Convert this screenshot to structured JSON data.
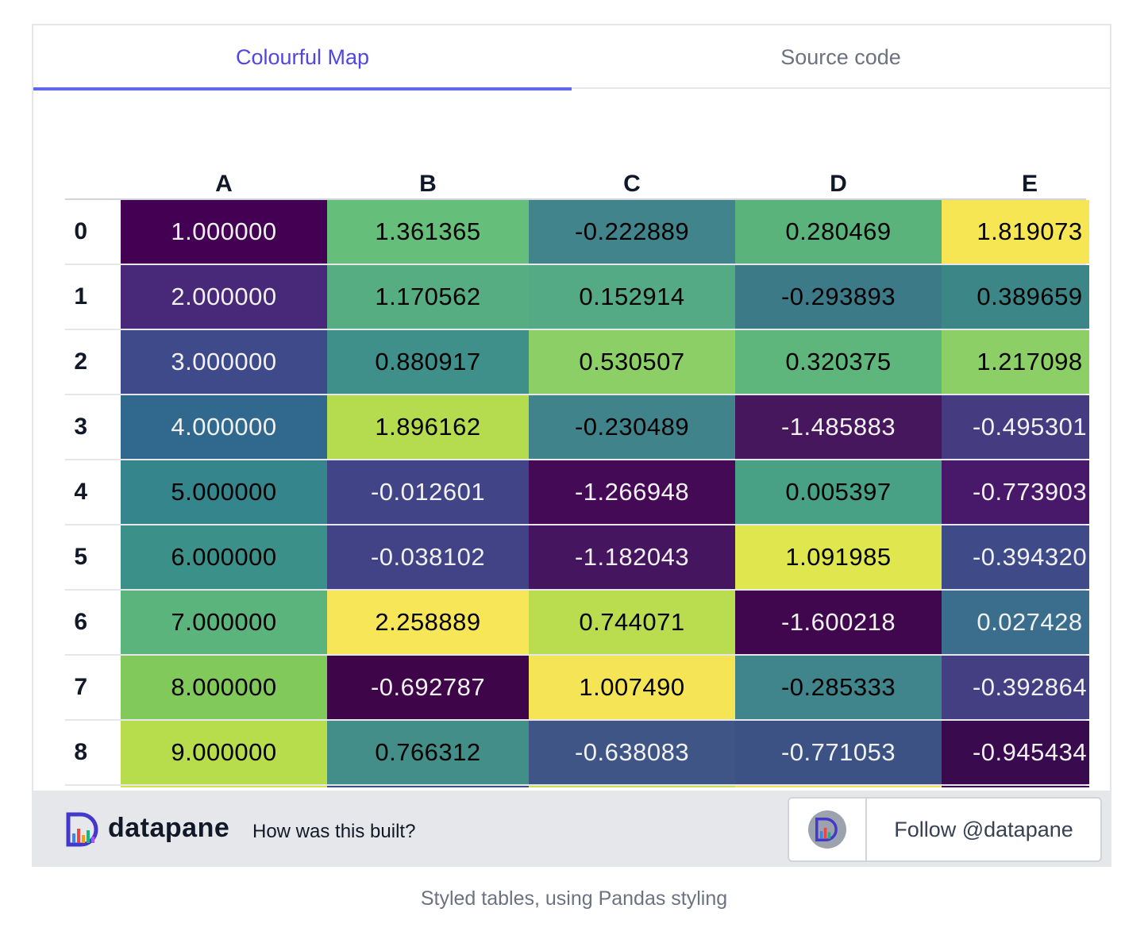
{
  "tabs": [
    {
      "label": "Colourful Map",
      "active": true
    },
    {
      "label": "Source code",
      "active": false
    }
  ],
  "table": {
    "columns": [
      "A",
      "B",
      "C",
      "D",
      "E"
    ],
    "rows": [
      {
        "index": "0",
        "cells": [
          {
            "value": "1.000000",
            "bg": "#440154",
            "fg": "#f1f1f1"
          },
          {
            "value": "1.361365",
            "bg": "#65be7a",
            "fg": "#000000"
          },
          {
            "value": "-0.222889",
            "bg": "#42848b",
            "fg": "#000000"
          },
          {
            "value": "0.280469",
            "bg": "#5bb37c",
            "fg": "#000000"
          },
          {
            "value": "1.819073",
            "bg": "#f7e654",
            "fg": "#000000"
          }
        ]
      },
      {
        "index": "1",
        "cells": [
          {
            "value": "2.000000",
            "bg": "#482878",
            "fg": "#f1f1f1"
          },
          {
            "value": "1.170562",
            "bg": "#56ad82",
            "fg": "#000000"
          },
          {
            "value": "0.152914",
            "bg": "#53aa84",
            "fg": "#000000"
          },
          {
            "value": "-0.293893",
            "bg": "#3d7a88",
            "fg": "#000000"
          },
          {
            "value": "0.389659",
            "bg": "#3d8687",
            "fg": "#000000"
          }
        ]
      },
      {
        "index": "2",
        "cells": [
          {
            "value": "3.000000",
            "bg": "#3e4a89",
            "fg": "#f1f1f1"
          },
          {
            "value": "0.880917",
            "bg": "#3f908b",
            "fg": "#000000"
          },
          {
            "value": "0.530507",
            "bg": "#8ccf66",
            "fg": "#000000"
          },
          {
            "value": "0.320375",
            "bg": "#5fb67c",
            "fg": "#000000"
          },
          {
            "value": "1.217098",
            "bg": "#8ccf66",
            "fg": "#000000"
          }
        ]
      },
      {
        "index": "3",
        "cells": [
          {
            "value": "4.000000",
            "bg": "#31688e",
            "fg": "#f1f1f1"
          },
          {
            "value": "1.896162",
            "bg": "#b5dc4e",
            "fg": "#000000"
          },
          {
            "value": "-0.230489",
            "bg": "#40838b",
            "fg": "#000000"
          },
          {
            "value": "-1.485883",
            "bg": "#46175c",
            "fg": "#f1f1f1"
          },
          {
            "value": "-0.495301",
            "bg": "#443b80",
            "fg": "#f1f1f1"
          }
        ]
      },
      {
        "index": "4",
        "cells": [
          {
            "value": "5.000000",
            "bg": "#35858d",
            "fg": "#000000"
          },
          {
            "value": "-0.012601",
            "bg": "#414487",
            "fg": "#f1f1f1"
          },
          {
            "value": "-1.266948",
            "bg": "#450a56",
            "fg": "#f1f1f1"
          },
          {
            "value": "0.005397",
            "bg": "#48a185",
            "fg": "#000000"
          },
          {
            "value": "-0.773903",
            "bg": "#48196a",
            "fg": "#f1f1f1"
          }
        ]
      },
      {
        "index": "5",
        "cells": [
          {
            "value": "6.000000",
            "bg": "#3b918a",
            "fg": "#000000"
          },
          {
            "value": "-0.038102",
            "bg": "#414386",
            "fg": "#f1f1f1"
          },
          {
            "value": "-1.182043",
            "bg": "#46155f",
            "fg": "#f1f1f1"
          },
          {
            "value": "1.091985",
            "bg": "#dfe64e",
            "fg": "#000000"
          },
          {
            "value": "-0.394320",
            "bg": "#3f4a88",
            "fg": "#f1f1f1"
          }
        ]
      },
      {
        "index": "6",
        "cells": [
          {
            "value": "7.000000",
            "bg": "#5bb47b",
            "fg": "#000000"
          },
          {
            "value": "2.258889",
            "bg": "#f7e658",
            "fg": "#000000"
          },
          {
            "value": "0.744071",
            "bg": "#b9dd4e",
            "fg": "#000000"
          },
          {
            "value": "-1.600218",
            "bg": "#40074f",
            "fg": "#f1f1f1"
          },
          {
            "value": "0.027428",
            "bg": "#3a6e8c",
            "fg": "#f1f1f1"
          }
        ]
      },
      {
        "index": "7",
        "cells": [
          {
            "value": "8.000000",
            "bg": "#82c95c",
            "fg": "#000000"
          },
          {
            "value": "-0.692787",
            "bg": "#3e0549",
            "fg": "#f1f1f1"
          },
          {
            "value": "1.007490",
            "bg": "#f5e556",
            "fg": "#000000"
          },
          {
            "value": "-0.285333",
            "bg": "#3f858b",
            "fg": "#000000"
          },
          {
            "value": "-0.392864",
            "bg": "#443e82",
            "fg": "#f1f1f1"
          }
        ]
      },
      {
        "index": "8",
        "cells": [
          {
            "value": "9.000000",
            "bg": "#b8dd4c",
            "fg": "#000000"
          },
          {
            "value": "0.766312",
            "bg": "#438e88",
            "fg": "#000000"
          },
          {
            "value": "-0.638083",
            "bg": "#3e5586",
            "fg": "#f1f1f1"
          },
          {
            "value": "-0.771053",
            "bg": "#3c5184",
            "fg": "#f1f1f1"
          },
          {
            "value": "-0.945434",
            "bg": "#3a0a4f",
            "fg": "#f1f1f1"
          }
        ]
      },
      {
        "index": "",
        "cells": [
          {
            "value": "",
            "bg": "#d4e347",
            "fg": "#000000"
          },
          {
            "value": "",
            "bg": "#3e4f88",
            "fg": "#f1f1f1"
          },
          {
            "value": "",
            "bg": "#c8e04c",
            "fg": "#000000"
          },
          {
            "value": "",
            "bg": "#f1e455",
            "fg": "#000000"
          },
          {
            "value": "",
            "bg": "#3c0a52",
            "fg": "#f1f1f1"
          }
        ]
      }
    ]
  },
  "footer": {
    "brand": "datapane",
    "how_link": "How was this built?",
    "follow_label": "Follow @datapane",
    "logo_icon": "datapane-logo-icon"
  },
  "caption": "Styled tables, using Pandas styling",
  "colors": {
    "accent": "#4f46e5",
    "tab_underline": "#6366f1",
    "footer_bg": "#e5e7eb"
  }
}
